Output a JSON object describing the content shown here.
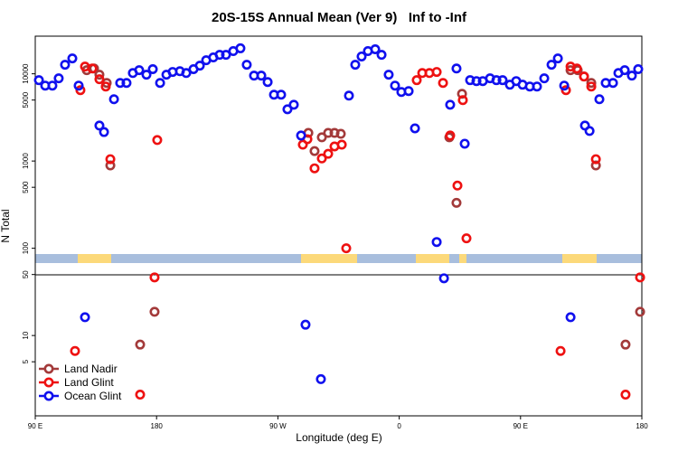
{
  "chart_data": {
    "type": "scatter",
    "title": "20S-15S Annual Mean (Ver 9)   Inf to -Inf",
    "x_label": "Longitude (deg E)",
    "y_label": "N Total",
    "xlim": [
      90,
      540
    ],
    "xticks": [
      {
        "value": 90,
        "label": "90 E"
      },
      {
        "value": 180,
        "label": "180"
      },
      {
        "value": 270,
        "label": "90 W"
      },
      {
        "value": 360,
        "label": "0"
      },
      {
        "value": 450,
        "label": "90 E"
      },
      {
        "value": 540,
        "label": "180"
      }
    ],
    "ylim": [
      1.2,
      27000
    ],
    "yticks": [
      5,
      10,
      50,
      100,
      500,
      1000,
      5000,
      10000
    ],
    "log_y": true,
    "legend": "bottom left",
    "series": [
      {
        "name": "Land Nadir",
        "color": "#a33a3a",
        "x": [
          128.2,
          133.6,
          137.6,
          143.0,
          145.7,
          167.8,
          178.5,
          292.6,
          297.2,
          302.6,
          307.3,
          312.0,
          316.7,
          397.2,
          402.5,
          406.6,
          487.1,
          492.4,
          497.1,
          502.5,
          505.9,
          527.9,
          538.7
        ],
        "values": [
          11000,
          11500,
          9770,
          7860,
          890,
          7.87,
          18.7,
          2100,
          1300,
          1870,
          2100,
          2100,
          2050,
          1870,
          332,
          5900,
          11000,
          11000,
          9300,
          7860,
          890,
          7.87,
          18.7
        ]
      },
      {
        "name": "Land Glint",
        "color": "#ee1111",
        "x": [
          119.5,
          123.5,
          126.9,
          132.3,
          137.6,
          142.3,
          145.7,
          167.8,
          178.5,
          180.5,
          288.5,
          291.9,
          297.2,
          302.6,
          307.3,
          312.0,
          317.4,
          320.7,
          373.0,
          377.1,
          382.4,
          387.8,
          392.5,
          397.8,
          403.2,
          407.2,
          409.9,
          479.7,
          483.7,
          487.1,
          491.8,
          497.1,
          502.5,
          505.9,
          527.9,
          538.7
        ],
        "values": [
          6.65,
          6490,
          12100,
          11500,
          8660,
          7150,
          1050,
          2.1,
          46.4,
          1740,
          1540,
          1780,
          825,
          1070,
          1210,
          1470,
          1540,
          100,
          8450,
          10200,
          10200,
          10500,
          7860,
          1960,
          523,
          4990,
          130,
          6.65,
          6490,
          12100,
          11500,
          9300,
          7150,
          1050,
          2.1,
          46.4
        ]
      },
      {
        "name": "Ocean Glint",
        "color": "#1010ee",
        "x": [
          92.7,
          97.4,
          102.7,
          107.4,
          112.1,
          117.5,
          122.2,
          126.9,
          137.6,
          141.0,
          148.4,
          153.0,
          157.7,
          162.4,
          167.1,
          172.5,
          177.2,
          182.6,
          187.3,
          191.9,
          197.3,
          202.0,
          207.4,
          212.1,
          216.8,
          222.1,
          226.8,
          231.5,
          236.9,
          242.2,
          246.9,
          252.3,
          257.7,
          262.4,
          267.1,
          272.4,
          277.1,
          281.8,
          287.2,
          290.5,
          301.9,
          322.7,
          327.4,
          332.1,
          336.8,
          342.2,
          346.9,
          352.2,
          356.9,
          361.6,
          367.0,
          371.7,
          387.8,
          393.2,
          397.8,
          402.5,
          408.6,
          412.6,
          417.3,
          422.0,
          427.4,
          432.1,
          436.7,
          442.1,
          446.8,
          451.5,
          456.9,
          462.2,
          467.6,
          473.0,
          477.7,
          482.4,
          487.1,
          497.8,
          501.2,
          508.5,
          513.2,
          518.6,
          522.6,
          527.3,
          532.6,
          537.3
        ],
        "values": [
          8450,
          7320,
          7320,
          8870,
          12700,
          15000,
          7320,
          16.2,
          2550,
          2150,
          5110,
          7860,
          7860,
          10200,
          11000,
          9770,
          11300,
          7860,
          9770,
          10500,
          10700,
          10200,
          11300,
          12400,
          14300,
          15400,
          16500,
          16500,
          18200,
          19600,
          12700,
          9530,
          9530,
          8050,
          5760,
          5760,
          3920,
          4420,
          1960,
          13.3,
          3.16,
          5620,
          12700,
          15800,
          18200,
          19100,
          16500,
          9770,
          7320,
          6190,
          6340,
          2370,
          118,
          45.3,
          4420,
          11500,
          1580,
          8450,
          8250,
          8250,
          8870,
          8450,
          8450,
          7500,
          8250,
          7500,
          7150,
          7150,
          8870,
          12700,
          15000,
          7320,
          16.2,
          2550,
          2210,
          5110,
          7860,
          7860,
          10200,
          11000,
          9530,
          11300
        ]
      }
    ]
  }
}
